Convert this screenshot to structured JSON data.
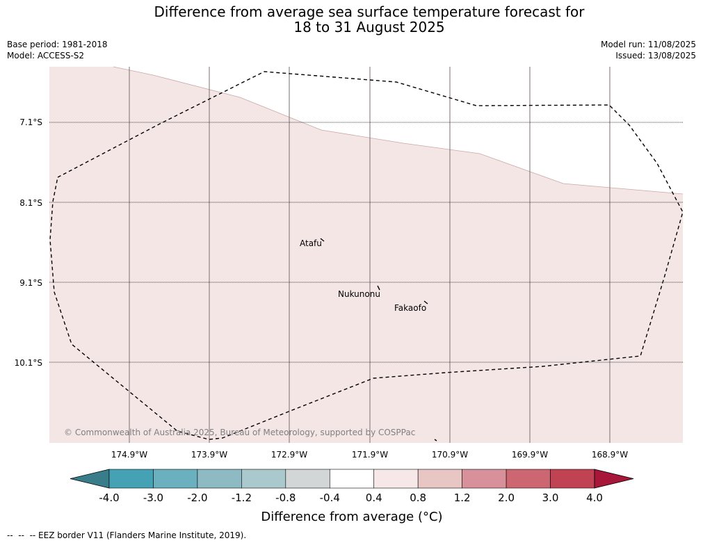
{
  "header": {
    "title_line1": "Difference from average sea surface temperature forecast for",
    "title_line2": "18 to 31 August 2025",
    "base_period": "Base period: 1981-2018",
    "model": "Model: ACCESS-S2",
    "model_run": "Model run: 11/08/2025",
    "issued": "Issued: 13/08/2025"
  },
  "map": {
    "background_color": "#ffffff",
    "anomaly_fill_color": "#f5e6e6",
    "latitude_labels": [
      "7.1°S",
      "8.1°S",
      "9.1°S",
      "10.1°S"
    ],
    "longitude_labels": [
      "174.9°W",
      "173.9°W",
      "172.9°W",
      "171.9°W",
      "170.9°W",
      "169.9°W",
      "168.9°W"
    ],
    "places": [
      {
        "name": "Atafu"
      },
      {
        "name": "Nukunonu"
      },
      {
        "name": "Fakaofo"
      }
    ],
    "copyright": "© Commonwealth of Australia 2025, Bureau of Meteorology, supported by COSPPac"
  },
  "colorbar": {
    "label": "Difference from average (°C)",
    "tick_labels": [
      "-4.0",
      "-3.0",
      "-2.0",
      "-1.2",
      "-0.8",
      "-0.4",
      "0.4",
      "0.8",
      "1.2",
      "2.0",
      "3.0",
      "4.0"
    ],
    "colors": [
      "#3a7d8a",
      "#44a2b4",
      "#6bb0be",
      "#8dbac3",
      "#a9c9cc",
      "#d2d6d6",
      "#ffffff",
      "#f6e8e8",
      "#e8c6c3",
      "#d8919a",
      "#cc6670",
      "#bf4352",
      "#a8163a"
    ]
  },
  "footer": {
    "legend_text": "-- EEZ border V11 (Flanders Marine Institute, 2019)."
  }
}
